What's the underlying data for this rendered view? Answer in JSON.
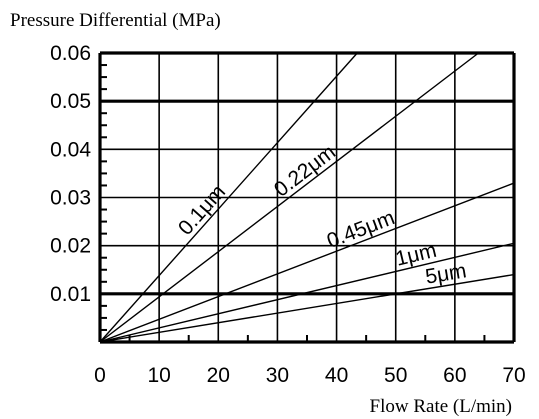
{
  "chart_data": {
    "type": "line",
    "ylabel": "Pressure Differential (MPa)",
    "xlabel": "Flow Rate (L/min)",
    "xlim": [
      0,
      70
    ],
    "ylim": [
      0,
      0.06
    ],
    "x_ticks": [
      0,
      10,
      20,
      30,
      40,
      50,
      60,
      70
    ],
    "x_tick_labels": [
      "0",
      "10",
      "20",
      "30",
      "40",
      "50",
      "60",
      "70"
    ],
    "y_ticks": [
      0.01,
      0.02,
      0.03,
      0.04,
      0.05,
      0.06
    ],
    "y_tick_labels": [
      "0.01",
      "0.02",
      "0.03",
      "0.04",
      "0.05",
      "0.06"
    ],
    "grid": true,
    "bold_gridlines_y": [
      0.01,
      0.05
    ],
    "series": [
      {
        "name": "0.1μm",
        "x": [
          0,
          43.5
        ],
        "y": [
          0,
          0.06
        ]
      },
      {
        "name": "0.22μm",
        "x": [
          0,
          64
        ],
        "y": [
          0,
          0.06
        ]
      },
      {
        "name": "0.45μm",
        "x": [
          0,
          70
        ],
        "y": [
          0,
          0.033
        ]
      },
      {
        "name": "1μm",
        "x": [
          0,
          70
        ],
        "y": [
          0,
          0.0205
        ]
      },
      {
        "name": "5μm",
        "x": [
          0,
          70
        ],
        "y": [
          0,
          0.014
        ]
      }
    ]
  }
}
